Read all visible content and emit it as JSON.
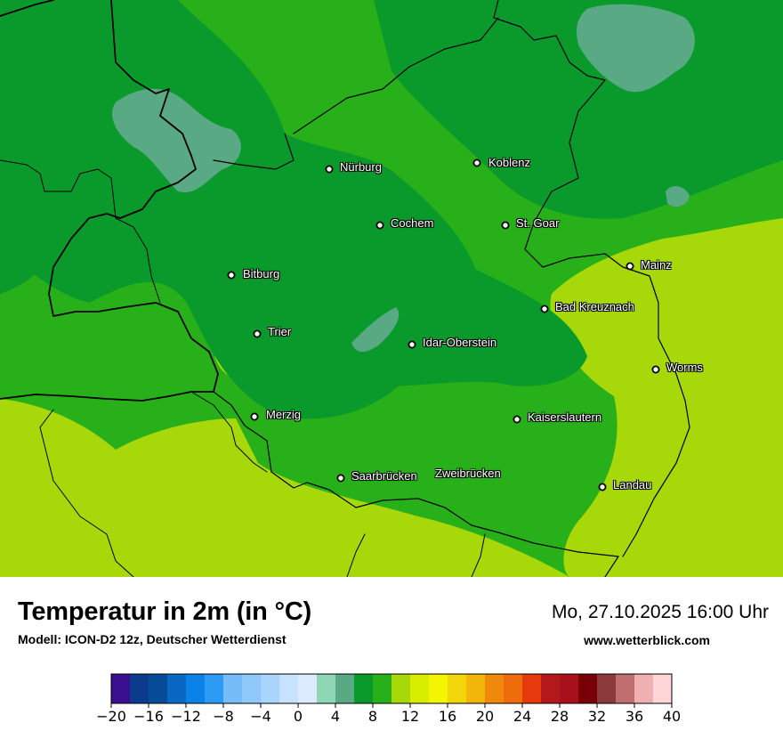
{
  "header": {
    "title": "Temperatur in 2m (in °C)",
    "model": "Modell: ICON-D2 12z, Deutscher Wetterdienst",
    "datetime": "Mo, 27.10.2025 16:00 Uhr",
    "website": "www.wetterblick.com"
  },
  "cities": [
    {
      "name": "Nürburg"
    },
    {
      "name": "Koblenz"
    },
    {
      "name": "Cochem"
    },
    {
      "name": "St. Goar"
    },
    {
      "name": "Mainz"
    },
    {
      "name": "Bitburg"
    },
    {
      "name": "Bad Kreuznach"
    },
    {
      "name": "Trier"
    },
    {
      "name": "Idar-Oberstein"
    },
    {
      "name": "Worms"
    },
    {
      "name": "Merzig"
    },
    {
      "name": "Kaiserslautern"
    },
    {
      "name": "Saarbrücken"
    },
    {
      "name": "Zweibrücken"
    },
    {
      "name": "Landau"
    }
  ],
  "legend": {
    "ticks": [
      "−20",
      "−16",
      "−12",
      "−8",
      "−4",
      "0",
      "4",
      "8",
      "12",
      "16",
      "20",
      "24",
      "28",
      "32",
      "36",
      "40"
    ],
    "colors": [
      "#3a0f8f",
      "#0b3b8c",
      "#064c96",
      "#0a67c2",
      "#0a82e8",
      "#2b9bf5",
      "#76bcf8",
      "#8ec8fb",
      "#a9d5fc",
      "#c6e2fd",
      "#dcebfd",
      "#8ed7b5",
      "#5aa985",
      "#0a9a2c",
      "#27b01a",
      "#a6d80a",
      "#d6ed00",
      "#f4f600",
      "#f2d60a",
      "#f2b60a",
      "#f0880c",
      "#ef6c0c",
      "#e63a0c",
      "#b5181a",
      "#a8101c",
      "#7a0008",
      "#8a3a3a",
      "#c06e70",
      "#f0b0b2",
      "#ffd6d8"
    ]
  },
  "map_colors": {
    "temp_4_6": "#5aa985",
    "temp_6_8": "#0a9a2c",
    "temp_8_10": "#27b01a",
    "temp_10_12": "#a6d80a",
    "border": "#000000"
  }
}
